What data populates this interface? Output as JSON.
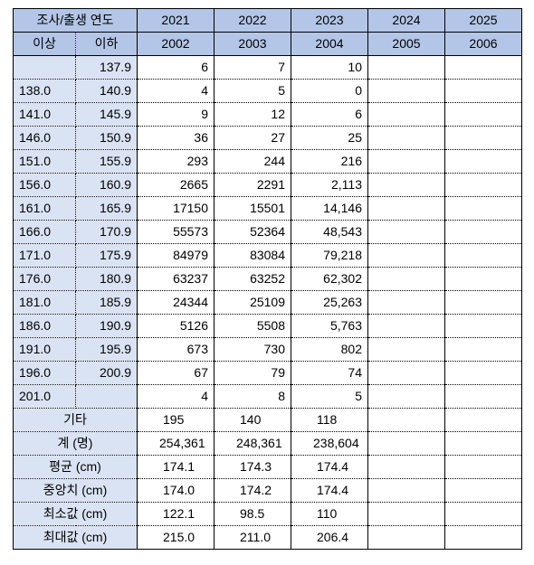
{
  "header": {
    "corner_label": "조사/출생 연도",
    "survey_years": [
      "2021",
      "2022",
      "2023",
      "2024",
      "2025"
    ],
    "min_label": "이상",
    "max_label": "이하",
    "birth_years": [
      "2002",
      "2003",
      "2004",
      "2005",
      "2006"
    ]
  },
  "height_rows": [
    {
      "min": "",
      "max": "137.9",
      "values": [
        "6",
        "7",
        "10",
        "",
        ""
      ]
    },
    {
      "min": "138.0",
      "max": "140.9",
      "values": [
        "4",
        "5",
        "0",
        "",
        ""
      ]
    },
    {
      "min": "141.0",
      "max": "145.9",
      "values": [
        "9",
        "12",
        "6",
        "",
        ""
      ]
    },
    {
      "min": "146.0",
      "max": "150.9",
      "values": [
        "36",
        "27",
        "25",
        "",
        ""
      ]
    },
    {
      "min": "151.0",
      "max": "155.9",
      "values": [
        "293",
        "244",
        "216",
        "",
        ""
      ]
    },
    {
      "min": "156.0",
      "max": "160.9",
      "values": [
        "2665",
        "2291",
        "2,113",
        "",
        ""
      ]
    },
    {
      "min": "161.0",
      "max": "165.9",
      "values": [
        "17150",
        "15501",
        "14,146",
        "",
        ""
      ]
    },
    {
      "min": "166.0",
      "max": "170.9",
      "values": [
        "55573",
        "52364",
        "48,543",
        "",
        ""
      ]
    },
    {
      "min": "171.0",
      "max": "175.9",
      "values": [
        "84979",
        "83084",
        "79,218",
        "",
        ""
      ]
    },
    {
      "min": "176.0",
      "max": "180.9",
      "values": [
        "63237",
        "63252",
        "62,302",
        "",
        ""
      ]
    },
    {
      "min": "181.0",
      "max": "185.9",
      "values": [
        "24344",
        "25109",
        "25,263",
        "",
        ""
      ]
    },
    {
      "min": "186.0",
      "max": "190.9",
      "values": [
        "5126",
        "5508",
        "5,763",
        "",
        ""
      ]
    },
    {
      "min": "191.0",
      "max": "195.9",
      "values": [
        "673",
        "730",
        "802",
        "",
        ""
      ]
    },
    {
      "min": "196.0",
      "max": "200.9",
      "values": [
        "67",
        "79",
        "74",
        "",
        ""
      ]
    },
    {
      "min": "201.0",
      "max": "",
      "values": [
        "4",
        "8",
        "5",
        "",
        ""
      ]
    }
  ],
  "other_row": {
    "label": "기타",
    "values": [
      "195",
      "140",
      "118",
      "",
      ""
    ]
  },
  "total_row": {
    "label": "계 (명)",
    "values": [
      "254,361",
      "248,361",
      "238,604",
      "",
      ""
    ]
  },
  "stat_rows": [
    {
      "label": "평균 (cm)",
      "values": [
        "174.1",
        "174.3",
        "174.4",
        "",
        ""
      ]
    },
    {
      "label": "중앙치 (cm)",
      "values": [
        "174.0",
        "174.2",
        "174.4",
        "",
        ""
      ]
    },
    {
      "label": "최소값 (cm)",
      "values": [
        "122.1",
        "98.5",
        "110",
        "",
        ""
      ]
    },
    {
      "label": "최대값 (cm)",
      "values": [
        "215.0",
        "211.0",
        "206.4",
        "",
        ""
      ]
    }
  ],
  "colors": {
    "header_fill": "#b4c6e7",
    "label_fill": "#dae3f3",
    "grid": "#000000"
  }
}
